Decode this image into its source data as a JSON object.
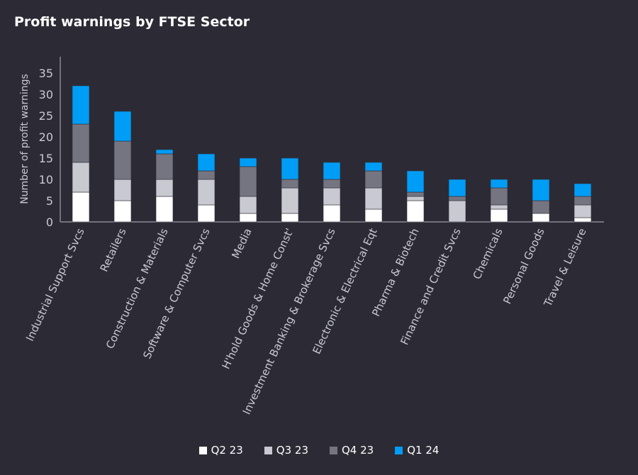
{
  "chart_data": {
    "type": "bar",
    "stacked": true,
    "title": "Profit warnings by FTSE Sector",
    "xlabel": "",
    "ylabel": "Number of profit warnings",
    "ylim": [
      0,
      35
    ],
    "yticks": [
      0,
      5,
      10,
      15,
      20,
      25,
      30,
      35
    ],
    "grid": false,
    "legend_position": "bottom",
    "categories": [
      "Industrial Support Svcs",
      "Retailers",
      "Construction & Materials",
      "Software & Computer Svcs",
      "Media",
      "H'hold Goods & Home Const'",
      "Investment Banking & Brokerage Svcs",
      "Electronic & Electrical Eqt",
      "Pharma & Biotech",
      "Finance and Credit Svcs",
      "Chemicals",
      "Personal Goods",
      "Travel & Leisure"
    ],
    "series": [
      {
        "name": "Q2 23",
        "color": "#ffffff",
        "values": [
          7,
          5,
          6,
          4,
          2,
          2,
          4,
          3,
          5,
          0,
          3,
          2,
          1
        ]
      },
      {
        "name": "Q3 23",
        "color": "#c9c9d1",
        "values": [
          7,
          5,
          4,
          6,
          4,
          6,
          4,
          5,
          1,
          5,
          1,
          0,
          3
        ]
      },
      {
        "name": "Q4 23",
        "color": "#757581",
        "values": [
          9,
          9,
          6,
          2,
          7,
          2,
          2,
          4,
          1,
          1,
          4,
          3,
          2
        ]
      },
      {
        "name": "Q1 24",
        "color": "#009df6",
        "values": [
          9,
          7,
          1,
          4,
          2,
          5,
          4,
          2,
          5,
          4,
          2,
          5,
          3
        ]
      }
    ]
  }
}
